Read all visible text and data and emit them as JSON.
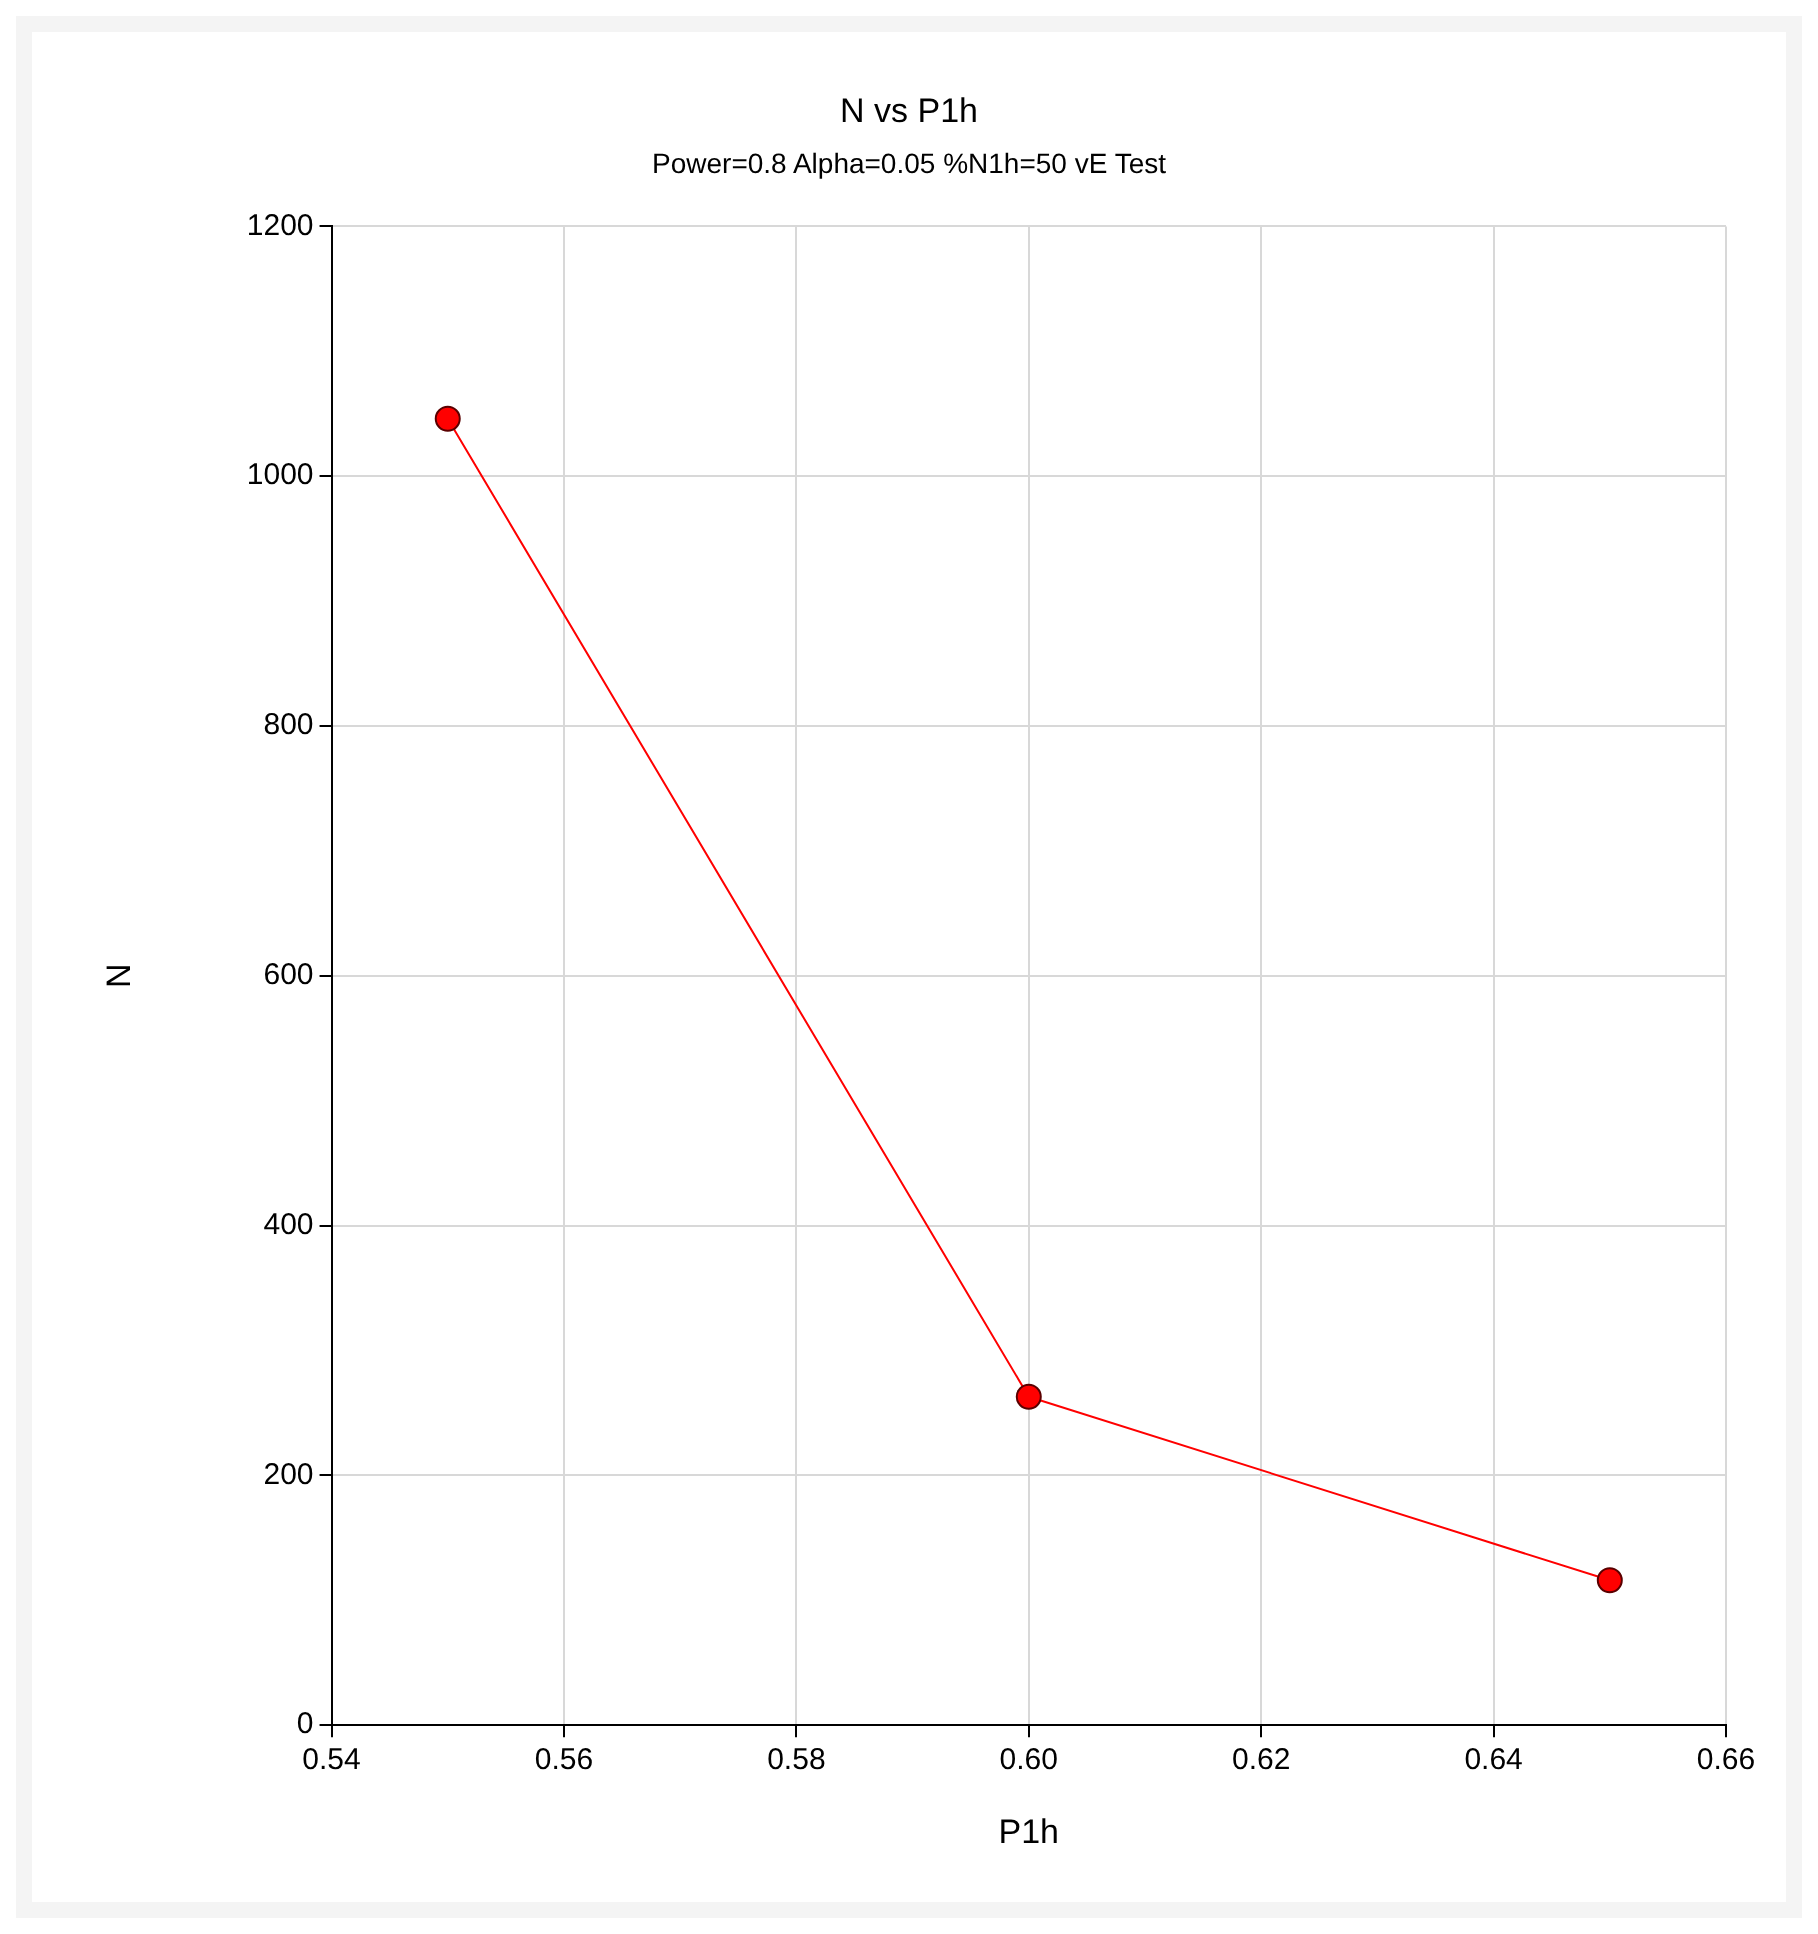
{
  "chart_data": {
    "type": "line",
    "title": "N vs P1h",
    "subtitle": "Power=0.8 Alpha=0.05 %N1h=50 vE Test",
    "xlabel": "P1h",
    "ylabel": "N",
    "x": [
      0.55,
      0.6,
      0.65
    ],
    "series": [
      {
        "color": "#ff0000",
        "values": [
          1046,
          263,
          116
        ]
      }
    ],
    "xlim": [
      0.54,
      0.66
    ],
    "xticks": [
      0.54,
      0.56,
      0.58,
      {
        "value": 0.6,
        "label": "0.60"
      },
      0.62,
      0.64,
      0.66
    ],
    "ylim": [
      0,
      1200
    ],
    "yticks": [
      0,
      200,
      400,
      600,
      800,
      1000,
      1200
    ],
    "grid": true,
    "legend": false,
    "marker": "circle",
    "line_style": "solid"
  }
}
